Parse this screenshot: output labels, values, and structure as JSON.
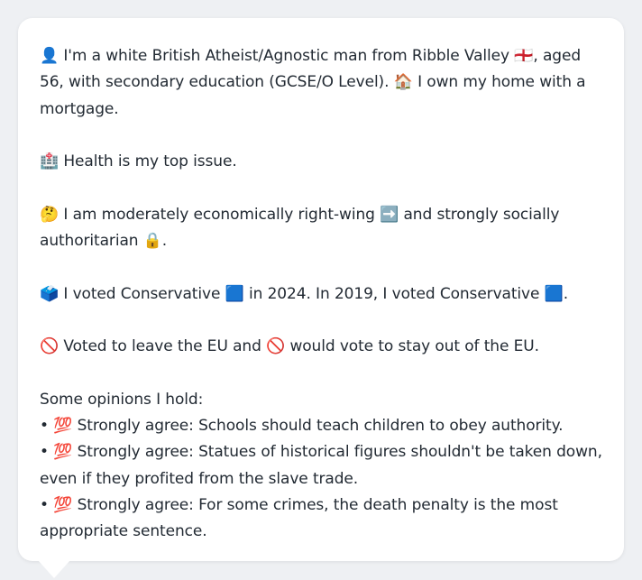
{
  "profile": {
    "intro": "👤 I'm a white British Atheist/Agnostic man from Ribble Valley 🏴󠁧󠁢󠁥󠁮󠁧󠁿, aged 56, with secondary education (GCSE/O Level). 🏠 I own my home with a mortgage.",
    "health": "🏥 Health is my top issue.",
    "ideology": "🤔 I am moderately economically right-wing ➡️ and strongly socially authoritarian 🔒.",
    "votes": "🗳️ I voted Conservative 🟦 in 2024. In 2019, I voted Conservative 🟦.",
    "eu": "🚫 Voted to leave the EU and 🚫 would vote to stay out of the EU.",
    "opinions_heading": "Some opinions I hold:",
    "opinions": [
      "• 💯 Strongly agree: Schools should teach children to obey authority.",
      "• 💯 Strongly agree: Statues of historical figures shouldn't be taken down, even if they profited from the slave trade.",
      "• 💯 Strongly agree: For some crimes, the death penalty is the most appropriate sentence."
    ]
  }
}
